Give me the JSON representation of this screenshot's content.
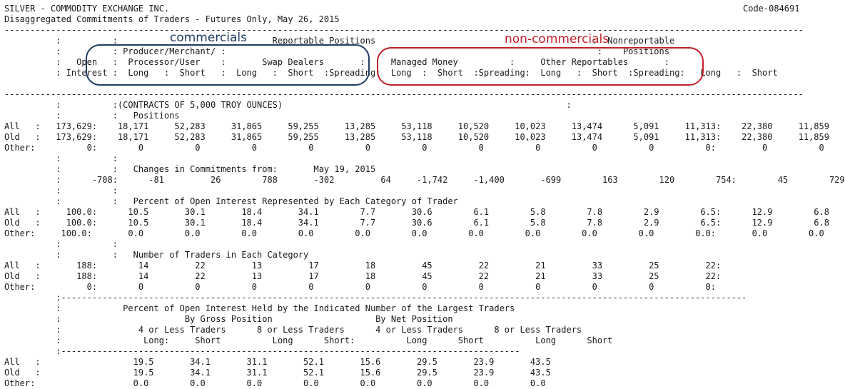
{
  "report": {
    "code": "Code-084691",
    "lines": [
      "SILVER - COMMODITY EXCHANGE INC.",
      "Disaggregated Commitments of Traders - Futures Only, May 26, 2015",
      "-----------------------------------------------------------------------------------------------------------------------------------------------------------",
      "          :          :                              Reportable Positions                                          :  Nonreportable",
      "          :          : Producer/Merchant/ :                                                                        :    Positions",
      "          :   Open   :  Processor/User    :       Swap Dealers       :     Managed Money          :     Other Reportables       :",
      "          : Interest :  Long   :  Short   :  Long   :  Short  :Spreading:  Long  :  Short  :Spreading:  Long   :  Short  :Spreading:   Long   :  Short",
      "",
      "-----------------------------------------------------------------------------------------------------------------------------------------------------------",
      "          :          :(CONTRACTS OF 5,000 TROY OUNCES)                                                       :",
      "          :          :   Positions",
      "All   :   173,629:    18,171     52,283     31,865     59,255     13,285     53,118     10,520     10,023     13,474      5,091     11,313:    22,380     11,859",
      "Old   :   173,629:    18,171     52,283     31,865     59,255     13,285     53,118     10,520     10,023     13,474      5,091     11,313:    22,380     11,859",
      "Other:          0:        0          0          0          0          0          0          0          0          0          0          0:         0          0",
      "          :          :",
      "          :          :   Changes in Commitments from:       May 19, 2015",
      "          :      -708:      -81         26        788       -302         64     -1,742     -1,400       -699        163        120        754:        45        729",
      "          :          :",
      "          :          :   Percent of Open Interest Represented by Each Category of Trader",
      "All   :     100.0:      10.5       30.1       18.4       34.1        7.7       30.6        6.1        5.8        7.8        2.9        6.5:      12.9        6.8",
      "Old   :     100.0:      10.5       30.1       18.4       34.1        7.7       30.6        6.1        5.8        7.8        2.9        6.5:      12.9        6.8",
      "Other:     100.0:       0.0        0.0        0.0        0.0        0.0        0.0        0.0        0.0        0.0        0.0        0.0:       0.0        0.0",
      "          :          :",
      "          :          :   Number of Traders in Each Category",
      "All   :       188:        14         22         13         17         18         45         22         21         33         25         22:",
      "Old   :       188:        14         22         13         17         18         45         22         21         33         25         22:",
      "Other:          0:        0          0          0          0          0          0          0          0          0          0          0:",
      "          :-------------------------------------------------------------------------------------------------------------------------------------",
      "          :            Percent of Open Interest Held by the Indicated Number of the Largest Traders",
      "          :                        By Gross Position                    By Net Position",
      "          :               4 or Less Traders      8 or Less Traders      4 or Less Traders      8 or Less Traders",
      "          :                Long:     Short          Long      Short:          Long      Short          Long      Short",
      "          :-----------------------------------------------------------------------------------------",
      "All   :                  19.5       34.1       31.1       52.1       15.6       29.5       23.9       43.5",
      "Old   :                  19.5       34.1       31.1       52.1       15.6       29.5       23.9       43.5",
      "Other:                   0.0        0.0        0.0        0.0        0.0        0.0        0.0        0.0"
    ]
  },
  "annotations": {
    "commercials_label": "commercials",
    "noncommercials_label": "non-commercials",
    "commercials_color": "#1f3d63",
    "noncommercials_color": "#c0202a"
  }
}
